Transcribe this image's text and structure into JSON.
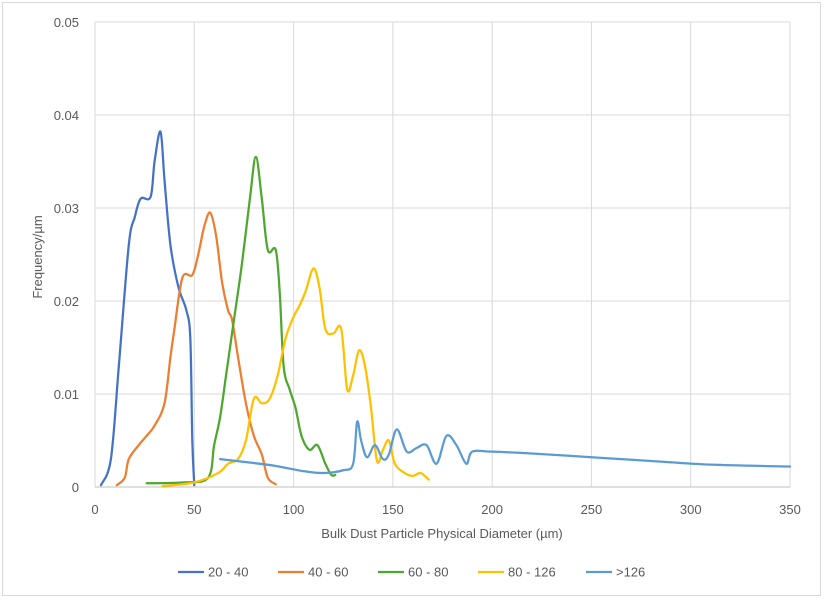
{
  "chart_data": {
    "type": "line",
    "title": "",
    "xlabel": "Bulk Dust Particle Physical Diameter (µm)",
    "ylabel": "Frequency/µm",
    "xlim": [
      0,
      350
    ],
    "ylim": [
      0,
      0.05
    ],
    "x_ticks": [
      "0",
      "50",
      "100",
      "150",
      "200",
      "250",
      "300",
      "350"
    ],
    "y_ticks": [
      "0",
      "0.01",
      "0.02",
      "0.03",
      "0.04",
      "0.05"
    ],
    "grid": "vertical and horizontal",
    "legend_position": "bottom",
    "series": [
      {
        "name": "20 - 40",
        "color": "#4472c4",
        "points": [
          [
            3,
            0.0002
          ],
          [
            8,
            0.003
          ],
          [
            12,
            0.013
          ],
          [
            17,
            0.026
          ],
          [
            20,
            0.029
          ],
          [
            23,
            0.031
          ],
          [
            28,
            0.0312
          ],
          [
            30,
            0.035
          ],
          [
            33,
            0.0382
          ],
          [
            35,
            0.033
          ],
          [
            38,
            0.026
          ],
          [
            42,
            0.0215
          ],
          [
            46,
            0.019
          ],
          [
            48,
            0.016
          ],
          [
            49,
            0.005
          ],
          [
            50,
            0.0002
          ]
        ]
      },
      {
        "name": "40 - 60",
        "color": "#ed7d31",
        "points": [
          [
            11,
            0.0002
          ],
          [
            15,
            0.001
          ],
          [
            17,
            0.003
          ],
          [
            22,
            0.0045
          ],
          [
            26,
            0.0055
          ],
          [
            30,
            0.0066
          ],
          [
            35,
            0.009
          ],
          [
            38,
            0.014
          ],
          [
            40,
            0.017
          ],
          [
            44,
            0.0225
          ],
          [
            49,
            0.0228
          ],
          [
            52,
            0.025
          ],
          [
            55,
            0.028
          ],
          [
            58,
            0.0295
          ],
          [
            61,
            0.027
          ],
          [
            64,
            0.022
          ],
          [
            67,
            0.019
          ],
          [
            69,
            0.018
          ],
          [
            72,
            0.014
          ],
          [
            76,
            0.009
          ],
          [
            80,
            0.0055
          ],
          [
            84,
            0.0035
          ],
          [
            87,
            0.001
          ],
          [
            91,
            0.0003
          ]
        ]
      },
      {
        "name": "60 - 80",
        "color": "#4ea72e",
        "points": [
          [
            26,
            0.0004
          ],
          [
            45,
            0.0005
          ],
          [
            57,
            0.001
          ],
          [
            60,
            0.0045
          ],
          [
            63,
            0.0075
          ],
          [
            66,
            0.012
          ],
          [
            70,
            0.018
          ],
          [
            74,
            0.024
          ],
          [
            78,
            0.031
          ],
          [
            81,
            0.0355
          ],
          [
            84,
            0.031
          ],
          [
            87,
            0.0255
          ],
          [
            91,
            0.0255
          ],
          [
            93,
            0.021
          ],
          [
            95,
            0.013
          ],
          [
            98,
            0.0105
          ],
          [
            101,
            0.0085
          ],
          [
            104,
            0.0055
          ],
          [
            108,
            0.004
          ],
          [
            112,
            0.0045
          ],
          [
            116,
            0.0025
          ],
          [
            119,
            0.0013
          ],
          [
            121,
            0.0013
          ]
        ]
      },
      {
        "name": "80 - 126",
        "color": "#ffc000",
        "points": [
          [
            34,
            0.0001
          ],
          [
            50,
            0.0005
          ],
          [
            62,
            0.0015
          ],
          [
            67,
            0.0025
          ],
          [
            72,
            0.003
          ],
          [
            76,
            0.005
          ],
          [
            80,
            0.0095
          ],
          [
            84,
            0.009
          ],
          [
            88,
            0.0095
          ],
          [
            92,
            0.012
          ],
          [
            96,
            0.016
          ],
          [
            100,
            0.0183
          ],
          [
            103,
            0.0195
          ],
          [
            106,
            0.021
          ],
          [
            110,
            0.0235
          ],
          [
            113,
            0.0215
          ],
          [
            116,
            0.017
          ],
          [
            120,
            0.0165
          ],
          [
            124,
            0.017
          ],
          [
            127,
            0.0105
          ],
          [
            130,
            0.012
          ],
          [
            133,
            0.0147
          ],
          [
            136,
            0.013
          ],
          [
            139,
            0.0085
          ],
          [
            142,
            0.0028
          ],
          [
            145,
            0.004
          ],
          [
            148,
            0.005
          ],
          [
            151,
            0.0025
          ],
          [
            156,
            0.0015
          ],
          [
            160,
            0.0012
          ],
          [
            164,
            0.0015
          ],
          [
            168,
            0.0008
          ]
        ]
      },
      {
        "name": ">126",
        "color": "#5b9bd5",
        "points": [
          [
            63,
            0.003
          ],
          [
            75,
            0.0027
          ],
          [
            90,
            0.0023
          ],
          [
            105,
            0.0017
          ],
          [
            115,
            0.0015
          ],
          [
            125,
            0.0018
          ],
          [
            130,
            0.0025
          ],
          [
            132,
            0.007
          ],
          [
            134,
            0.005
          ],
          [
            137,
            0.0032
          ],
          [
            141,
            0.0045
          ],
          [
            145,
            0.003
          ],
          [
            148,
            0.0035
          ],
          [
            152,
            0.0062
          ],
          [
            157,
            0.0038
          ],
          [
            162,
            0.0042
          ],
          [
            167,
            0.0045
          ],
          [
            172,
            0.0025
          ],
          [
            177,
            0.0055
          ],
          [
            182,
            0.0045
          ],
          [
            187,
            0.0025
          ],
          [
            190,
            0.0038
          ],
          [
            200,
            0.0038
          ],
          [
            220,
            0.0036
          ],
          [
            250,
            0.0032
          ],
          [
            280,
            0.0028
          ],
          [
            310,
            0.0024
          ],
          [
            350,
            0.0022
          ]
        ]
      }
    ]
  }
}
